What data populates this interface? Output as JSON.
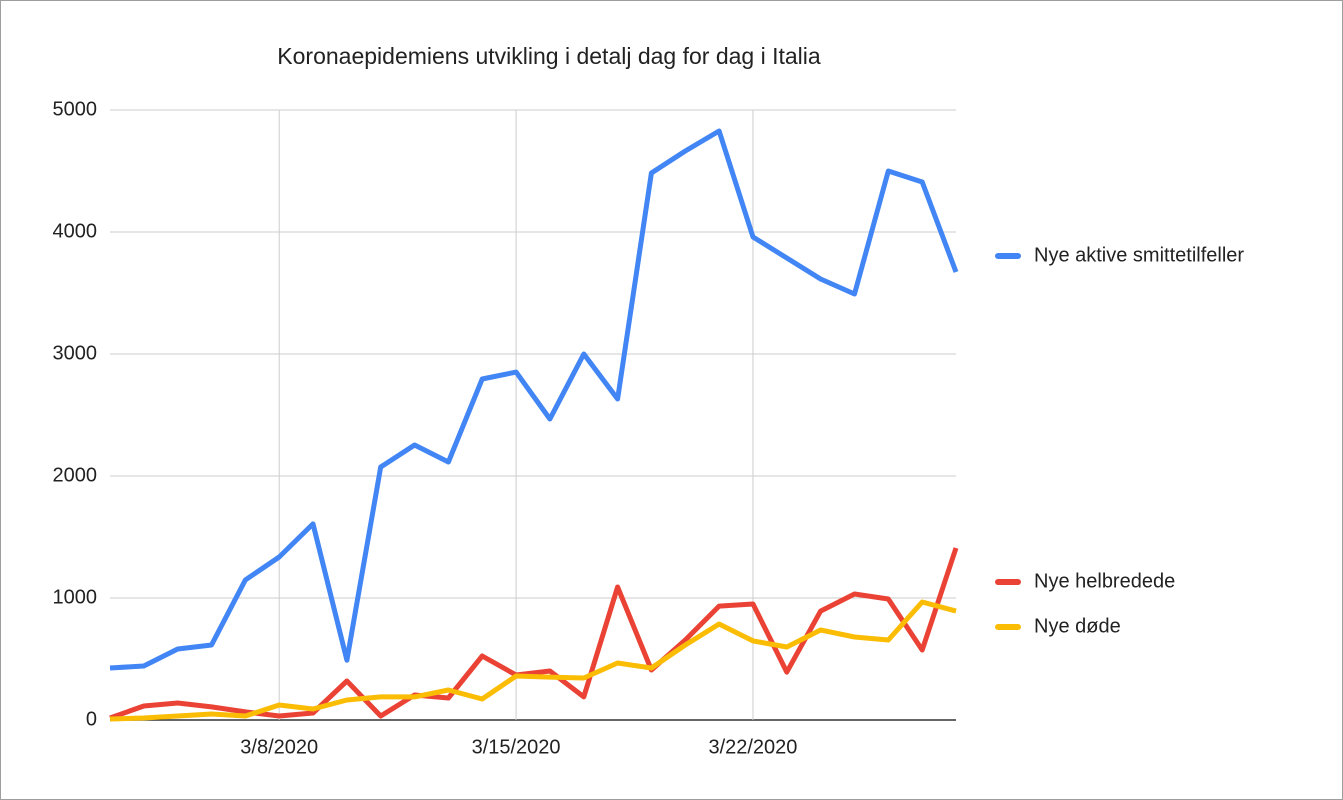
{
  "chart_data": {
    "type": "line",
    "title": "Koronaepidemiens utvikling i detalj dag for dag i Italia",
    "x": [
      "3/3/2020",
      "3/4/2020",
      "3/5/2020",
      "3/6/2020",
      "3/7/2020",
      "3/8/2020",
      "3/9/2020",
      "3/10/2020",
      "3/11/2020",
      "3/12/2020",
      "3/13/2020",
      "3/14/2020",
      "3/15/2020",
      "3/16/2020",
      "3/17/2020",
      "3/18/2020",
      "3/19/2020",
      "3/20/2020",
      "3/21/2020",
      "3/22/2020",
      "3/23/2020",
      "3/24/2020",
      "3/25/2020",
      "3/26/2020",
      "3/27/2020",
      "3/28/2020"
    ],
    "series": [
      {
        "name": "Nye aktive smittetilfeller",
        "color": "#4285f4",
        "values": [
          426,
          443,
          582,
          615,
          1148,
          1336,
          1607,
          490,
          2074,
          2254,
          2115,
          2795,
          2852,
          2467,
          3000,
          2631,
          4484,
          4664,
          4828,
          3959,
          3787,
          3615,
          3492,
          4500,
          4410,
          3672
        ]
      },
      {
        "name": "Nye helbredede",
        "color": "#ea4335",
        "values": [
          16,
          115,
          139,
          107,
          66,
          33,
          57,
          320,
          33,
          205,
          180,
          525,
          369,
          402,
          189,
          1090,
          410,
          656,
          934,
          951,
          393,
          893,
          1033,
          992,
          574,
          1410
        ]
      },
      {
        "name": "Nye døde",
        "color": "#fbbc04",
        "values": [
          8,
          16,
          33,
          49,
          33,
          123,
          90,
          164,
          189,
          189,
          246,
          172,
          361,
          352,
          344,
          467,
          426,
          615,
          787,
          648,
          598,
          738,
          680,
          656,
          967,
          893
        ]
      }
    ],
    "xticks": [
      "3/8/2020",
      "3/15/2020",
      "3/22/2020"
    ],
    "ylim": [
      0,
      5000
    ],
    "yticks": [
      0,
      1000,
      2000,
      3000,
      4000,
      5000
    ],
    "grid": true,
    "legend": "right"
  }
}
